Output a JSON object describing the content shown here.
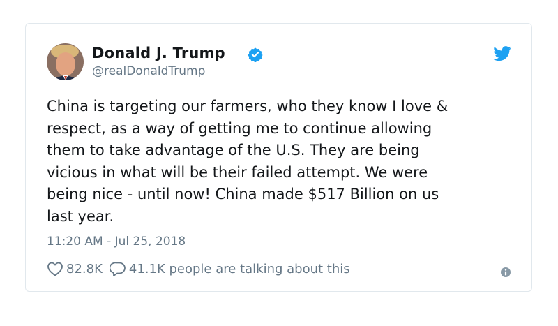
{
  "tweet": {
    "author_name": "Donald J. Trump",
    "handle": "@realDonaldTrump",
    "verified": true,
    "text": "China is targeting our farmers, who they know I love &\nrespect, as a way of getting me to continue allowing\nthem to take advantage of the U.S. They are being\nvicious in what will be their failed attempt. We were\nbeing nice - until now! China made $517 Billion on us\nlast year.",
    "timestamp": "11:20 AM - Jul 25, 2018",
    "likes": "82.8K",
    "talking": "41.1K people are talking about this"
  },
  "icons": {
    "avatar": "profile-photo",
    "verified": "verified-badge-icon",
    "brand": "twitter-bird-icon",
    "like": "heart-icon",
    "reply": "speech-bubble-icon",
    "info": "info-icon"
  },
  "colors": {
    "twitter_blue": "#1da1f2",
    "secondary_text": "#657786",
    "primary_text": "#14171a",
    "border": "#e1e8ed"
  }
}
